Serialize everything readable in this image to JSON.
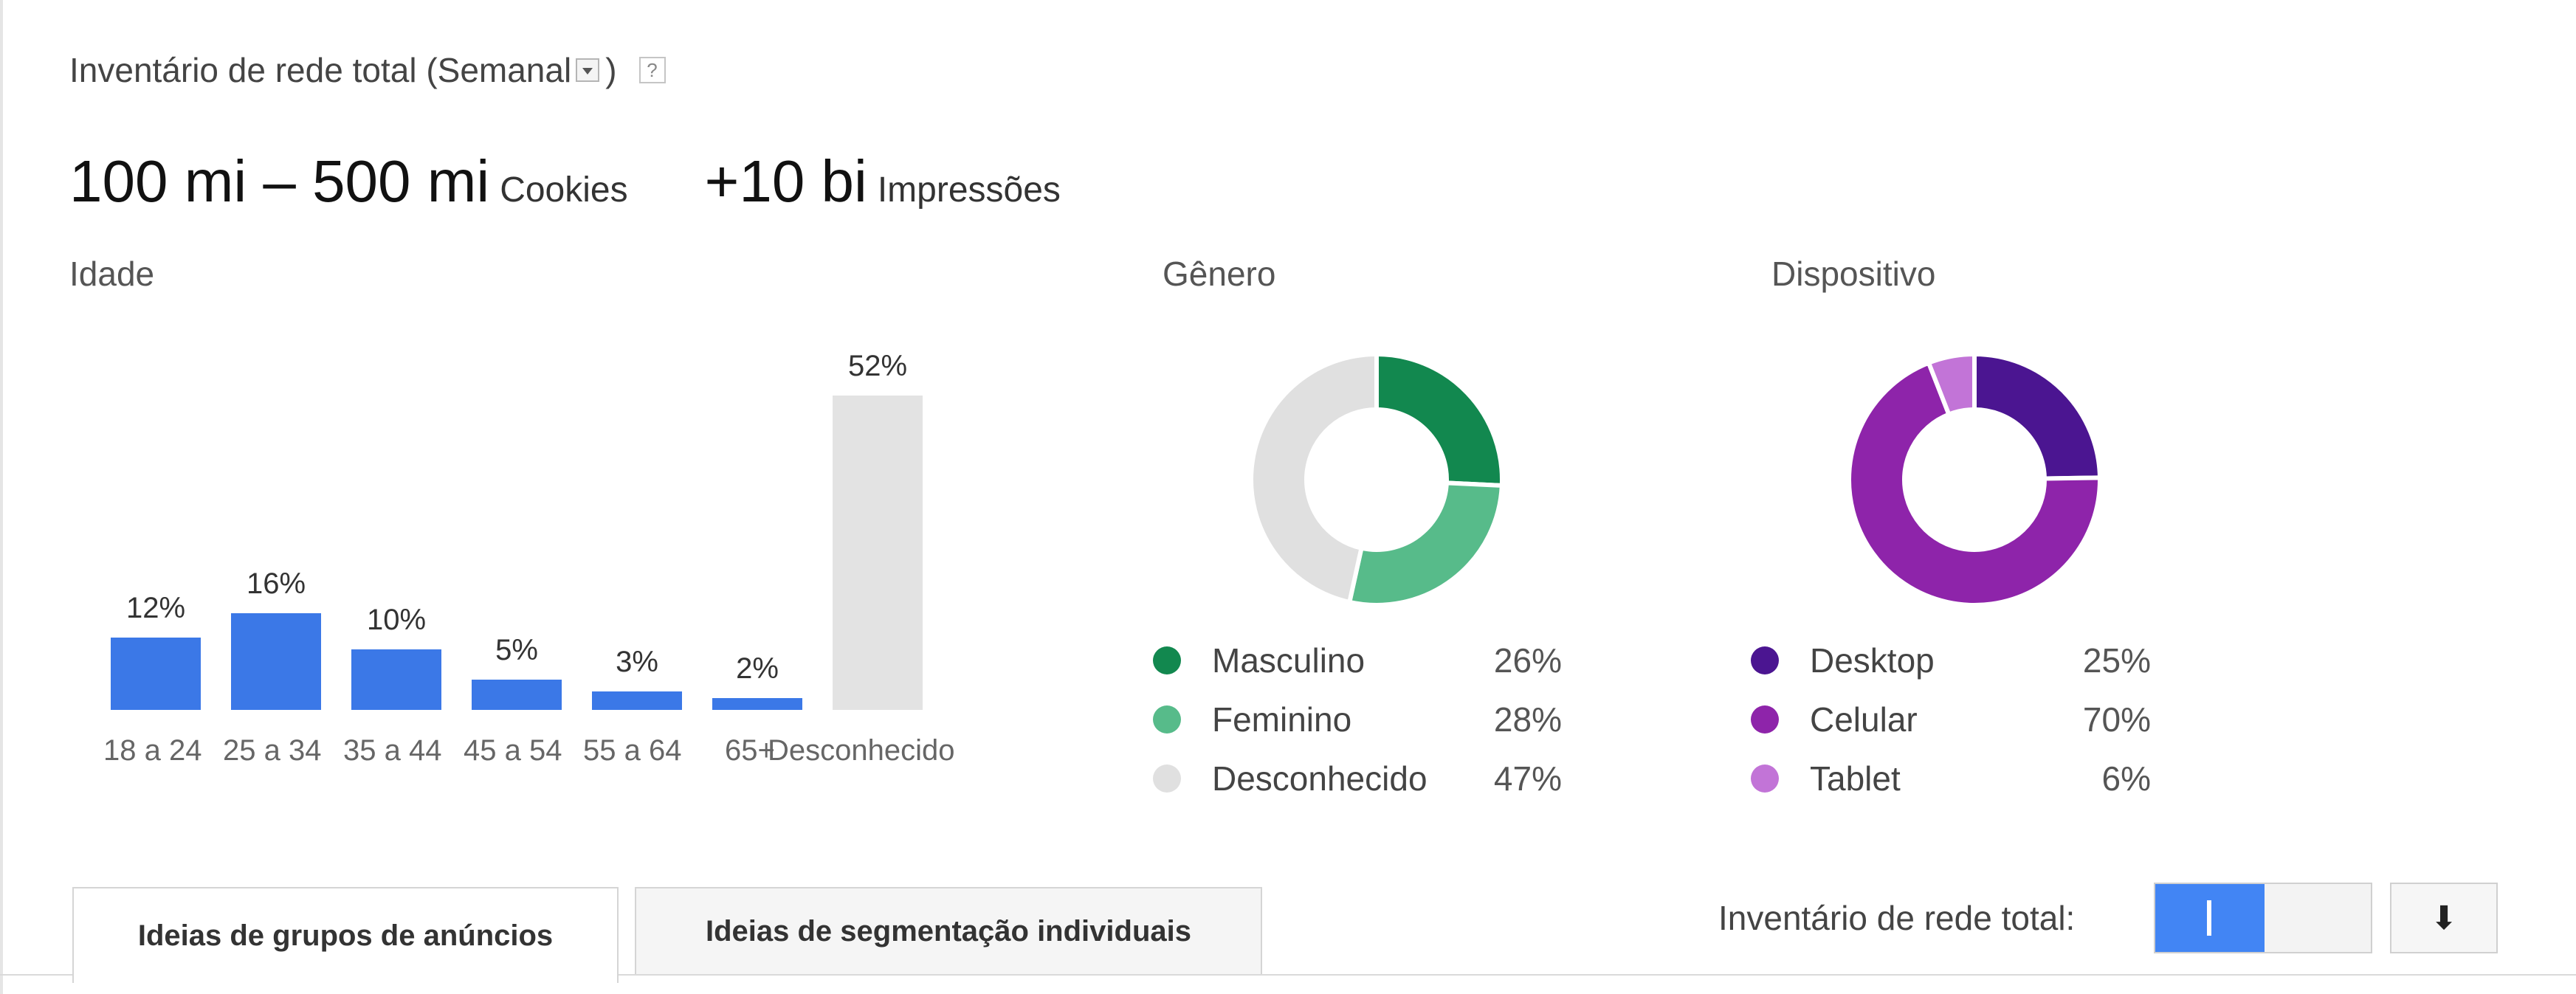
{
  "header": {
    "title": "Inventário de rede total (Semanal",
    "close_paren": ")",
    "help": "?"
  },
  "stats": {
    "cookies_value": "100 mi – 500 mi",
    "cookies_label": "Cookies",
    "impressions_value": "+10 bi",
    "impressions_label": "Impressões"
  },
  "age": {
    "title": "Idade",
    "chart_data": {
      "type": "bar",
      "categories": [
        "18 a 24",
        "25 a 34",
        "35 a 44",
        "45 a 54",
        "55 a 64",
        "65+",
        "Desconhecido"
      ],
      "values": [
        12,
        16,
        10,
        5,
        3,
        2,
        52
      ],
      "labels": [
        "12%",
        "16%",
        "10%",
        "5%",
        "3%",
        "2%",
        "52%"
      ],
      "colors": [
        "#3b78e7",
        "#3b78e7",
        "#3b78e7",
        "#3b78e7",
        "#3b78e7",
        "#3b78e7",
        "#e3e3e3"
      ]
    }
  },
  "gender": {
    "title": "Gênero",
    "chart_data": {
      "type": "pie",
      "series": [
        {
          "name": "Masculino",
          "value": 26,
          "label": "26%",
          "color": "#12884f"
        },
        {
          "name": "Feminino",
          "value": 28,
          "label": "28%",
          "color": "#57bb8a"
        },
        {
          "name": "Desconhecido",
          "value": 47,
          "label": "47%",
          "color": "#e0e0e0"
        }
      ]
    }
  },
  "device": {
    "title": "Dispositivo",
    "chart_data": {
      "type": "pie",
      "series": [
        {
          "name": "Desktop",
          "value": 25,
          "label": "25%",
          "color": "#4b1591"
        },
        {
          "name": "Celular",
          "value": 70,
          "label": "70%",
          "color": "#8e24aa"
        },
        {
          "name": "Tablet",
          "value": 6,
          "label": "6%",
          "color": "#c274d7"
        }
      ]
    }
  },
  "tabs": [
    {
      "label": "Ideias de grupos de anúncios",
      "active": true
    },
    {
      "label": "Ideias de segmentação individuais",
      "active": false
    }
  ],
  "controls": {
    "total_label": "Inventário de rede total:",
    "download_icon": "⬇"
  }
}
